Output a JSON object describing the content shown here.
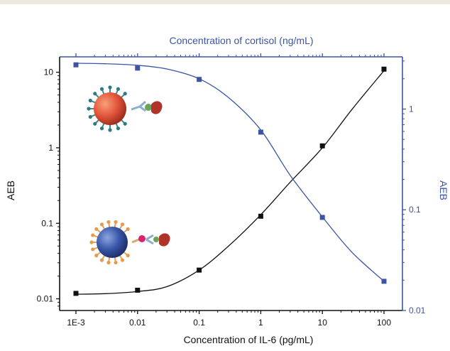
{
  "chart_data": {
    "type": "scatter",
    "title": "",
    "xlabel": "Concentration of IL-6 (pg/mL)",
    "x2label": "Concentration of cortisol (ng/mL)",
    "ylabel": "AEB",
    "y2label": "AEB",
    "x_scale": "log",
    "y_scale": "log",
    "xlim": [
      0.001,
      100
    ],
    "ylim": [
      0.007,
      16
    ],
    "y2lim": [
      0.01,
      3.3
    ],
    "x_ticks": [
      {
        "value": 0.001,
        "label": "1E-3"
      },
      {
        "value": 0.01,
        "label": "0.01"
      },
      {
        "value": 0.1,
        "label": "0.1"
      },
      {
        "value": 1,
        "label": "1"
      },
      {
        "value": 10,
        "label": "10"
      },
      {
        "value": 100,
        "label": "100"
      }
    ],
    "y_ticks": [
      {
        "value": 0.01,
        "label": "0.01"
      },
      {
        "value": 0.1,
        "label": "0.1"
      },
      {
        "value": 1,
        "label": "1"
      },
      {
        "value": 10,
        "label": "10"
      }
    ],
    "y2_ticks": [
      {
        "value": 0.01,
        "label": "0.01"
      },
      {
        "value": 0.1,
        "label": "0.1"
      },
      {
        "value": 1,
        "label": "1"
      }
    ],
    "grid": false,
    "legend": "none",
    "series": [
      {
        "axis": "left",
        "color": "#111111",
        "x": [
          0.001,
          0.01,
          0.1,
          1,
          10,
          100
        ],
        "y": [
          0.0118,
          0.013,
          0.024,
          0.124,
          1.06,
          11
        ],
        "fit": [
          [
            0.001,
            0.0115
          ],
          [
            0.003,
            0.0117
          ],
          [
            0.01,
            0.0125
          ],
          [
            0.03,
            0.0145
          ],
          [
            0.1,
            0.024
          ],
          [
            0.3,
            0.05
          ],
          [
            1,
            0.13
          ],
          [
            3,
            0.35
          ],
          [
            10,
            1.0
          ],
          [
            30,
            3.2
          ],
          [
            100,
            10.5
          ]
        ]
      },
      {
        "axis": "right",
        "color": "#3b55a3",
        "x": [
          0.001,
          0.01,
          0.1,
          1,
          10,
          100
        ],
        "y": [
          2.75,
          2.55,
          1.97,
          0.59,
          0.084,
          0.0195
        ],
        "fit": [
          [
            0.001,
            2.85
          ],
          [
            0.003,
            2.82
          ],
          [
            0.01,
            2.72
          ],
          [
            0.03,
            2.5
          ],
          [
            0.1,
            2.0
          ],
          [
            0.3,
            1.3
          ],
          [
            1,
            0.62
          ],
          [
            3,
            0.22
          ],
          [
            10,
            0.085
          ],
          [
            30,
            0.038
          ],
          [
            100,
            0.0195
          ]
        ]
      }
    ]
  },
  "icons": {
    "upper": "red-nanoparticle-conjugate-icon",
    "lower": "blue-nanoparticle-conjugate-icon"
  }
}
